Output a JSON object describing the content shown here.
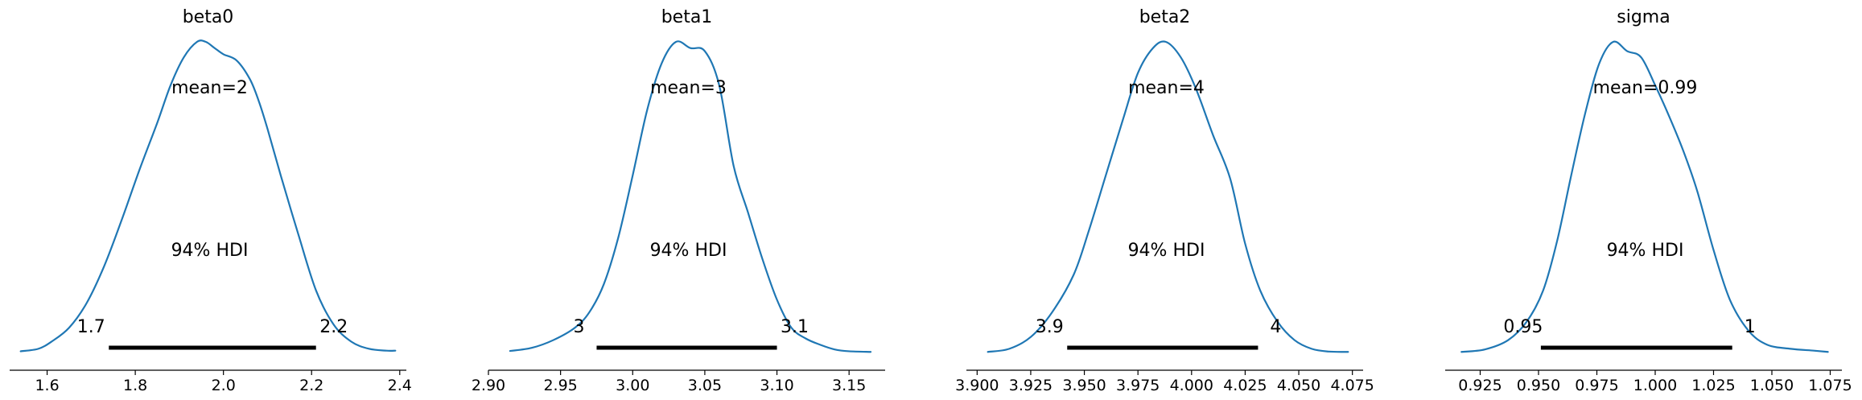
{
  "chart_data": [
    {
      "type": "area",
      "title": "beta0",
      "mean_label": "mean=2",
      "hdi_label": "94% HDI",
      "hdi": {
        "low": 1.74,
        "high": 2.21,
        "low_label": "1.7",
        "high_label": "2.2"
      },
      "xlim": [
        1.515,
        2.415
      ],
      "xticks": [
        1.6,
        1.8,
        2.0,
        2.2,
        2.4
      ],
      "xtick_labels": [
        "1.6",
        "1.8",
        "2.0",
        "2.2",
        "2.4"
      ],
      "x": [
        1.54,
        1.58,
        1.61,
        1.65,
        1.69,
        1.73,
        1.77,
        1.81,
        1.85,
        1.88,
        1.91,
        1.94,
        1.96,
        1.98,
        2.0,
        2.03,
        2.06,
        2.08,
        2.1,
        2.13,
        2.17,
        2.21,
        2.25,
        2.29,
        2.33,
        2.37,
        2.39
      ],
      "density": [
        0.004,
        0.012,
        0.035,
        0.08,
        0.16,
        0.28,
        0.43,
        0.59,
        0.74,
        0.86,
        0.95,
        1.0,
        1.0,
        0.98,
        0.96,
        0.94,
        0.88,
        0.81,
        0.72,
        0.57,
        0.38,
        0.2,
        0.09,
        0.035,
        0.012,
        0.006,
        0.006
      ]
    },
    {
      "type": "area",
      "title": "beta1",
      "mean_label": "mean=3",
      "hdi_label": "94% HDI",
      "hdi": {
        "low": 2.975,
        "high": 3.1,
        "low_label": "3",
        "high_label": "3.1"
      },
      "xlim": [
        2.9,
        3.175
      ],
      "xticks": [
        2.9,
        2.95,
        3.0,
        3.05,
        3.1,
        3.15
      ],
      "xtick_labels": [
        "2.90",
        "2.95",
        "3.00",
        "3.05",
        "3.10",
        "3.15"
      ],
      "x": [
        2.915,
        2.93,
        2.945,
        2.96,
        2.97,
        2.98,
        2.99,
        3.0,
        3.01,
        3.02,
        3.03,
        3.04,
        3.05,
        3.06,
        3.07,
        3.08,
        3.09,
        3.1,
        3.11,
        3.12,
        3.13,
        3.14,
        3.15,
        3.165
      ],
      "density": [
        0.005,
        0.015,
        0.04,
        0.08,
        0.13,
        0.22,
        0.37,
        0.57,
        0.78,
        0.93,
        1.0,
        0.98,
        0.97,
        0.86,
        0.6,
        0.45,
        0.3,
        0.17,
        0.08,
        0.045,
        0.025,
        0.01,
        0.004,
        0.002
      ]
    },
    {
      "type": "area",
      "title": "beta2",
      "mean_label": "mean=4",
      "hdi_label": "94% HDI",
      "hdi": {
        "low": 3.942,
        "high": 4.031,
        "low_label": "3.9",
        "high_label": "4"
      },
      "xlim": [
        3.895,
        4.08
      ],
      "xticks": [
        3.9,
        3.925,
        3.95,
        3.975,
        4.0,
        4.025,
        4.05,
        4.075
      ],
      "xtick_labels": [
        "3.900",
        "3.925",
        "3.950",
        "3.975",
        "4.000",
        "4.025",
        "4.050",
        "4.075"
      ],
      "x": [
        3.905,
        3.915,
        3.925,
        3.935,
        3.945,
        3.952,
        3.96,
        3.968,
        3.975,
        3.982,
        3.988,
        3.995,
        4.002,
        4.01,
        4.018,
        4.025,
        4.032,
        4.04,
        4.048,
        4.056,
        4.064,
        4.073
      ],
      "density": [
        0.002,
        0.012,
        0.05,
        0.13,
        0.25,
        0.39,
        0.57,
        0.75,
        0.9,
        0.98,
        1.0,
        0.95,
        0.85,
        0.7,
        0.56,
        0.35,
        0.2,
        0.1,
        0.04,
        0.012,
        0.003,
        0.002
      ]
    },
    {
      "type": "area",
      "title": "sigma",
      "mean_label": "mean=0.99",
      "hdi_label": "94% HDI",
      "hdi": {
        "low": 0.951,
        "high": 1.033,
        "low_label": "0.95",
        "high_label": "1"
      },
      "xlim": [
        0.91,
        1.08
      ],
      "xticks": [
        0.925,
        0.95,
        0.975,
        1.0,
        1.025,
        1.05,
        1.075
      ],
      "xtick_labels": [
        "0.925",
        "0.950",
        "0.975",
        "1.000",
        "1.025",
        "1.050",
        "1.075"
      ],
      "x": [
        0.917,
        0.927,
        0.937,
        0.945,
        0.952,
        0.958,
        0.964,
        0.97,
        0.976,
        0.982,
        0.988,
        0.994,
        1.0,
        1.006,
        1.012,
        1.018,
        1.025,
        1.032,
        1.04,
        1.048,
        1.058,
        1.068,
        1.074
      ],
      "density": [
        0.002,
        0.01,
        0.04,
        0.1,
        0.2,
        0.36,
        0.57,
        0.77,
        0.93,
        1.0,
        0.97,
        0.95,
        0.86,
        0.76,
        0.65,
        0.52,
        0.33,
        0.17,
        0.07,
        0.025,
        0.012,
        0.006,
        0.002
      ]
    }
  ],
  "style": {
    "curve_color": "#1f77b4",
    "hdi_color": "#000000",
    "axis_color": "#000000"
  }
}
